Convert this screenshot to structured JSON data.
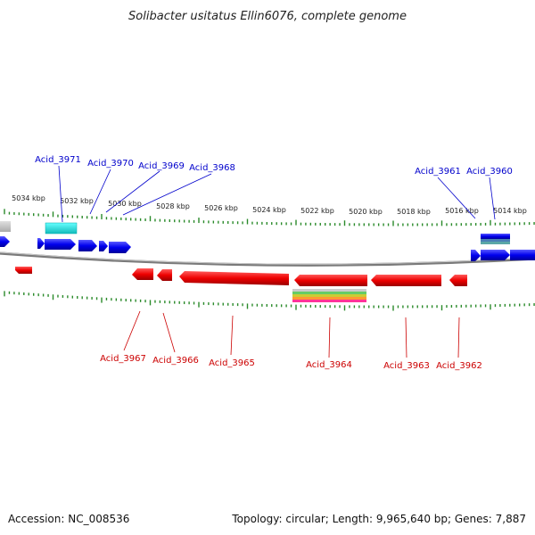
{
  "title": "Solibacter usitatus Ellin6076, complete genome",
  "footer": {
    "accession": "Accession: NC_008536",
    "topology": "Topology: circular; Length: 9,965,640 bp; Genes: 7,887"
  },
  "colors": {
    "forward_gene": "#0000ee",
    "reverse_gene": "#ee0000",
    "forward_label": "#0000cc",
    "reverse_label": "#cc0000",
    "ticks": "#2a8a2a",
    "backbone": "#888888",
    "highlight_cyan": "#22dddd"
  },
  "scale_labels": [
    "5034 kbp",
    "5032 kbp",
    "5030 kbp",
    "5028 kbp",
    "5026 kbp",
    "5024 kbp",
    "5022 kbp",
    "5020 kbp",
    "5018 kbp",
    "5016 kbp",
    "5014 kbp"
  ],
  "forward_genes": [
    "Acid_3971",
    "Acid_3970",
    "Acid_3969",
    "Acid_3968",
    "Acid_3961",
    "Acid_3960"
  ],
  "reverse_genes": [
    "Acid_3967",
    "Acid_3966",
    "Acid_3965",
    "Acid_3964",
    "Acid_3963",
    "Acid_3962"
  ]
}
